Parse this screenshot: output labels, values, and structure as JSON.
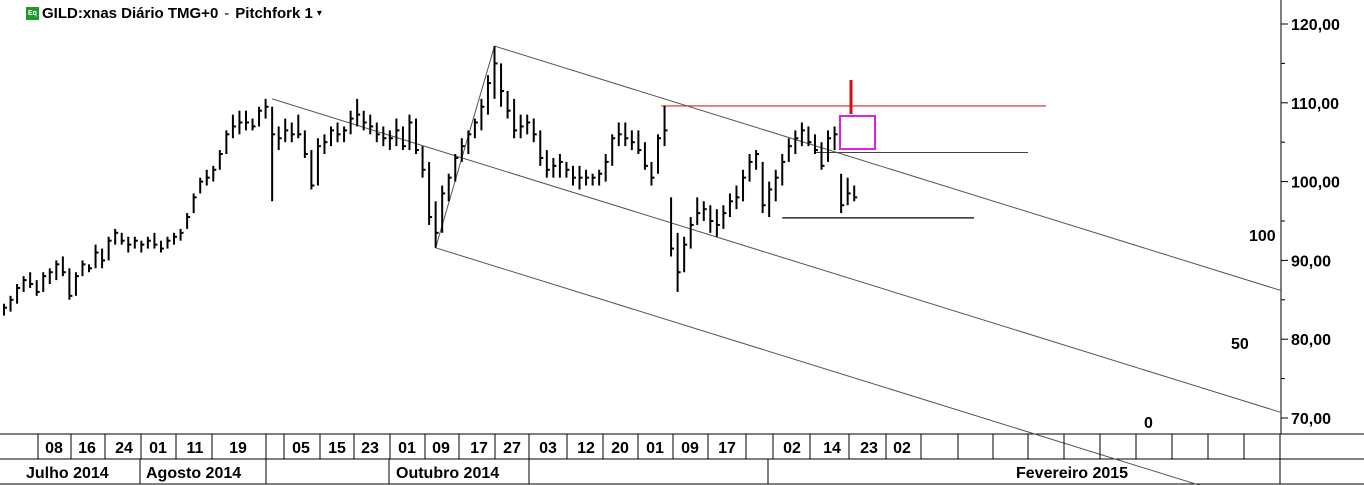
{
  "header": {
    "icon_label": "Eq",
    "symbol": "GILD:xnas Diário TMG+0",
    "separator": "-",
    "study": "Pitchfork 1",
    "caret": "▾"
  },
  "colors": {
    "bars": "#000000",
    "pitchfork": "#555555",
    "resistance": "#e02020",
    "marker_arrow": "#d01010",
    "highlight_box": "#e020e0",
    "support": "#000000"
  },
  "chart_data": {
    "type": "ohlc",
    "ylim": [
      68,
      122
    ],
    "y_ticks": [
      "120,00",
      "110,00",
      "100,00",
      "90,00",
      "80,00",
      "70,00"
    ],
    "y_tick_values": [
      120,
      110,
      100,
      90,
      80,
      70
    ],
    "day_labels": [
      "08",
      "16",
      "24",
      "01",
      "11",
      "19",
      "05",
      "15",
      "23",
      "01",
      "09",
      "17",
      "27",
      "03",
      "12",
      "20",
      "01",
      "09",
      "17",
      "02",
      "14",
      "23",
      "02"
    ],
    "month_labels": [
      "Julho 2014",
      "Agosto 2014",
      "Outubro 2014",
      "Fevereiro 2015"
    ],
    "pitchfork": {
      "name": "Pitchfork 1",
      "levels": [
        "100",
        "50",
        "0"
      ],
      "pivots": [
        {
          "bar": 0,
          "price": 110.5
        },
        {
          "bar": 1,
          "price": 117.2
        },
        {
          "bar": 2,
          "price": 91.6
        }
      ]
    },
    "resistance_price": 109.6,
    "support_price": 95.4,
    "short_line_price": 103.7,
    "bars": [
      [
        0,
        84.5,
        83.0,
        84.0
      ],
      [
        1,
        85.5,
        83.5,
        85.0
      ],
      [
        2,
        87.0,
        84.5,
        86.5
      ],
      [
        3,
        88.0,
        86.0,
        87.5
      ],
      [
        4,
        88.5,
        86.5,
        87.0
      ],
      [
        5,
        87.5,
        85.5,
        86.0
      ],
      [
        6,
        88.5,
        86.0,
        88.0
      ],
      [
        7,
        89.0,
        87.0,
        88.5
      ],
      [
        8,
        90.0,
        87.5,
        89.5
      ],
      [
        9,
        90.5,
        88.0,
        88.5
      ],
      [
        10,
        89.0,
        85.0,
        85.5
      ],
      [
        11,
        88.5,
        85.5,
        88.0
      ],
      [
        12,
        90.0,
        88.0,
        89.5
      ],
      [
        13,
        89.5,
        88.5,
        89.0
      ],
      [
        14,
        92.0,
        89.0,
        91.0
      ],
      [
        15,
        91.5,
        89.0,
        90.0
      ],
      [
        16,
        93.0,
        90.0,
        92.5
      ],
      [
        17,
        94.0,
        92.0,
        93.5
      ],
      [
        18,
        93.5,
        92.0,
        92.5
      ],
      [
        19,
        93.0,
        91.0,
        92.0
      ],
      [
        20,
        93.0,
        91.5,
        92.5
      ],
      [
        21,
        92.5,
        91.0,
        92.0
      ],
      [
        22,
        93.0,
        91.5,
        92.5
      ],
      [
        23,
        93.5,
        91.5,
        92.0
      ],
      [
        24,
        92.5,
        91.0,
        91.5
      ],
      [
        25,
        93.0,
        91.5,
        92.5
      ],
      [
        26,
        93.5,
        92.0,
        93.0
      ],
      [
        27,
        94.0,
        92.5,
        93.5
      ],
      [
        28,
        96.0,
        94.0,
        95.5
      ],
      [
        29,
        98.5,
        96.0,
        98.0
      ],
      [
        30,
        100.5,
        98.5,
        100.0
      ],
      [
        31,
        101.5,
        99.5,
        100.5
      ],
      [
        32,
        102.0,
        100.0,
        101.5
      ],
      [
        33,
        104.0,
        101.5,
        103.5
      ],
      [
        34,
        106.5,
        103.5,
        106.0
      ],
      [
        35,
        108.5,
        105.5,
        107.0
      ],
      [
        36,
        109.0,
        106.0,
        107.5
      ],
      [
        37,
        109.0,
        106.5,
        107.5
      ],
      [
        38,
        108.0,
        106.5,
        107.0
      ],
      [
        39,
        109.5,
        107.0,
        109.0
      ],
      [
        40,
        110.5,
        108.0,
        109.5
      ],
      [
        41,
        109.5,
        97.5,
        106.0
      ],
      [
        42,
        107.0,
        104.0,
        105.5
      ],
      [
        43,
        108.0,
        105.0,
        106.5
      ],
      [
        44,
        107.5,
        105.0,
        106.0
      ],
      [
        45,
        108.5,
        105.5,
        106.0
      ],
      [
        46,
        106.5,
        103.0,
        103.5
      ],
      [
        47,
        104.0,
        99.0,
        99.5
      ],
      [
        48,
        105.5,
        99.5,
        104.5
      ],
      [
        49,
        106.0,
        103.5,
        105.0
      ],
      [
        50,
        107.0,
        104.5,
        106.5
      ],
      [
        51,
        107.5,
        105.0,
        106.0
      ],
      [
        52,
        107.0,
        105.0,
        106.5
      ],
      [
        53,
        109.0,
        106.0,
        108.0
      ],
      [
        54,
        110.5,
        107.0,
        108.5
      ],
      [
        55,
        109.0,
        106.5,
        107.5
      ],
      [
        56,
        108.5,
        106.0,
        107.0
      ],
      [
        57,
        107.5,
        105.0,
        106.0
      ],
      [
        58,
        107.0,
        104.5,
        105.5
      ],
      [
        59,
        106.5,
        104.0,
        105.5
      ],
      [
        60,
        108.0,
        104.5,
        106.5
      ],
      [
        61,
        107.0,
        104.0,
        104.5
      ],
      [
        62,
        108.5,
        104.0,
        107.5
      ],
      [
        63,
        108.0,
        103.5,
        104.0
      ],
      [
        64,
        104.5,
        100.5,
        101.5
      ],
      [
        65,
        102.5,
        94.5,
        95.5
      ],
      [
        66,
        97.5,
        91.6,
        93.5
      ],
      [
        67,
        99.5,
        93.5,
        98.5
      ],
      [
        68,
        101.0,
        97.5,
        100.5
      ],
      [
        69,
        103.5,
        100.0,
        103.0
      ],
      [
        70,
        105.5,
        102.5,
        104.5
      ],
      [
        71,
        106.5,
        103.5,
        106.0
      ],
      [
        72,
        108.0,
        105.5,
        107.5
      ],
      [
        73,
        110.5,
        106.5,
        109.5
      ],
      [
        74,
        113.5,
        108.5,
        112.5
      ],
      [
        75,
        117.2,
        110.5,
        115.0
      ],
      [
        76,
        115.0,
        109.5,
        111.5
      ],
      [
        77,
        111.5,
        108.0,
        109.0
      ],
      [
        78,
        110.5,
        105.5,
        106.5
      ],
      [
        79,
        108.5,
        105.5,
        107.0
      ],
      [
        80,
        108.5,
        106.0,
        107.5
      ],
      [
        81,
        108.0,
        105.0,
        106.0
      ],
      [
        82,
        106.5,
        102.0,
        103.0
      ],
      [
        83,
        104.0,
        100.5,
        101.5
      ],
      [
        84,
        103.0,
        100.5,
        102.0
      ],
      [
        85,
        103.5,
        100.5,
        102.5
      ],
      [
        86,
        102.5,
        100.5,
        101.5
      ],
      [
        87,
        102.0,
        99.5,
        100.5
      ],
      [
        88,
        102.0,
        99.0,
        100.5
      ],
      [
        89,
        101.5,
        99.5,
        100.5
      ],
      [
        90,
        101.0,
        99.5,
        100.5
      ],
      [
        91,
        101.5,
        99.5,
        101.0
      ],
      [
        92,
        103.5,
        100.0,
        102.5
      ],
      [
        93,
        106.0,
        102.0,
        105.5
      ],
      [
        94,
        107.5,
        104.5,
        106.0
      ],
      [
        95,
        107.5,
        104.5,
        105.5
      ],
      [
        96,
        106.5,
        104.0,
        105.0
      ],
      [
        97,
        106.5,
        103.5,
        104.0
      ],
      [
        98,
        105.0,
        101.5,
        102.0
      ],
      [
        99,
        102.5,
        99.5,
        100.5
      ],
      [
        100,
        106.0,
        101.0,
        105.5
      ],
      [
        101,
        109.6,
        104.5,
        106.5
      ],
      [
        102,
        98.0,
        90.5,
        91.5
      ],
      [
        103,
        93.5,
        86.0,
        88.5
      ],
      [
        104,
        93.0,
        88.5,
        92.0
      ],
      [
        105,
        95.5,
        91.5,
        94.5
      ],
      [
        106,
        98.0,
        94.5,
        96.0
      ],
      [
        107,
        97.5,
        95.0,
        96.5
      ],
      [
        108,
        97.0,
        93.5,
        95.0
      ],
      [
        109,
        96.5,
        93.0,
        94.5
      ],
      [
        110,
        97.0,
        94.0,
        96.0
      ],
      [
        111,
        98.5,
        95.5,
        97.5
      ],
      [
        112,
        99.5,
        96.5,
        98.0
      ],
      [
        113,
        101.5,
        97.5,
        100.5
      ],
      [
        114,
        103.5,
        100.0,
        102.5
      ],
      [
        115,
        104.0,
        101.5,
        103.5
      ],
      [
        116,
        102.5,
        96.0,
        97.0
      ],
      [
        117,
        100.0,
        95.5,
        99.0
      ],
      [
        118,
        101.5,
        97.5,
        100.5
      ],
      [
        119,
        103.5,
        99.5,
        102.5
      ],
      [
        120,
        105.5,
        102.5,
        104.5
      ],
      [
        121,
        106.5,
        103.5,
        105.5
      ],
      [
        122,
        107.5,
        104.5,
        106.5
      ],
      [
        123,
        107.0,
        104.5,
        105.0
      ],
      [
        124,
        106.0,
        103.5,
        104.0
      ],
      [
        125,
        105.0,
        101.5,
        102.0
      ],
      [
        126,
        106.5,
        102.5,
        105.5
      ],
      [
        127,
        107.0,
        104.0,
        106.0
      ],
      [
        128,
        101.0,
        96.0,
        97.0
      ],
      [
        129,
        100.5,
        97.0,
        98.5
      ],
      [
        130,
        99.5,
        97.5,
        98.0
      ]
    ]
  }
}
